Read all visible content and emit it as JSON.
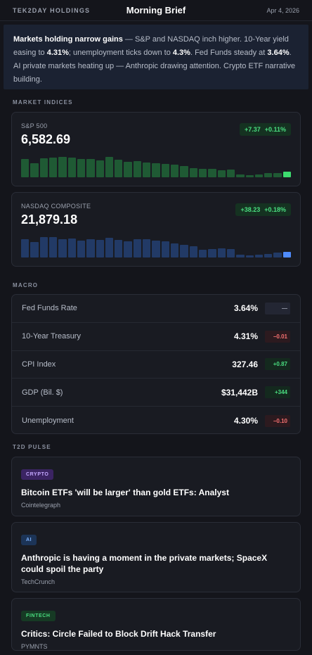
{
  "header": {
    "brand": "TEK2DAY HOLDINGS",
    "title": "Morning Brief",
    "date": "Apr 4, 2026"
  },
  "brief": {
    "parts": [
      {
        "text": "Markets holding narrow gains",
        "bold": true
      },
      {
        "text": " — S&P and NASDAQ inch higher. 10-Year yield easing to ",
        "bold": false
      },
      {
        "text": "4.31%",
        "bold": true
      },
      {
        "text": "; unemployment ticks down to ",
        "bold": false
      },
      {
        "text": "4.3%",
        "bold": true
      },
      {
        "text": ". Fed Funds steady at ",
        "bold": false
      },
      {
        "text": "3.64%",
        "bold": true
      },
      {
        "text": ". AI private markets heating up — Anthropic drawing attention. Crypto ETF narrative building.",
        "bold": false
      }
    ]
  },
  "sections": {
    "indices": "MARKET INDICES",
    "macro": "MACRO",
    "pulse": "T2D PULSE"
  },
  "indices": [
    {
      "name": "S&P 500",
      "value": "6,582.69",
      "change": "+7.37",
      "change_pct": "+0.11%",
      "bar_color": "#1f5a34",
      "last_color": "#3ddc6f",
      "spark": [
        0.82,
        0.64,
        0.84,
        0.88,
        0.9,
        0.88,
        0.8,
        0.8,
        0.75,
        0.9,
        0.78,
        0.68,
        0.72,
        0.66,
        0.62,
        0.6,
        0.56,
        0.5,
        0.42,
        0.38,
        0.38,
        0.3,
        0.34,
        0.14,
        0.1,
        0.12,
        0.18,
        0.2,
        0.26
      ]
    },
    {
      "name": "NASDAQ COMPOSITE",
      "value": "21,879.18",
      "change": "+38.23",
      "change_pct": "+0.18%",
      "bar_color": "#223a66",
      "last_color": "#4f8cff",
      "spark": [
        0.8,
        0.68,
        0.9,
        0.9,
        0.82,
        0.84,
        0.74,
        0.8,
        0.78,
        0.86,
        0.78,
        0.72,
        0.8,
        0.8,
        0.74,
        0.72,
        0.62,
        0.56,
        0.5,
        0.34,
        0.36,
        0.42,
        0.38,
        0.14,
        0.1,
        0.12,
        0.16,
        0.22,
        0.26
      ]
    }
  ],
  "macro": [
    {
      "label": "Fed Funds Rate",
      "value": "3.64%",
      "change": "—",
      "dir": "flat"
    },
    {
      "label": "10-Year Treasury",
      "value": "4.31%",
      "change": "−0.01",
      "dir": "down"
    },
    {
      "label": "CPI Index",
      "value": "327.46",
      "change": "+0.87",
      "dir": "up"
    },
    {
      "label": "GDP (Bil. $)",
      "value": "$31,442B",
      "change": "+344",
      "dir": "up"
    },
    {
      "label": "Unemployment",
      "value": "4.30%",
      "change": "−0.10",
      "dir": "down"
    }
  ],
  "news": [
    {
      "tag": "CRYPTO",
      "tag_class": "crypto",
      "title": "Bitcoin ETFs 'will be larger' than gold ETFs: Analyst",
      "source": "Cointelegraph"
    },
    {
      "tag": "AI",
      "tag_class": "ai",
      "title": "Anthropic is having a moment in the private markets; SpaceX could spoil the party",
      "source": "TechCrunch"
    },
    {
      "tag": "FINTECH",
      "tag_class": "fintech",
      "title": "Critics: Circle Failed to Block Drift Hack Transfer",
      "source": "PYMNTS"
    }
  ]
}
